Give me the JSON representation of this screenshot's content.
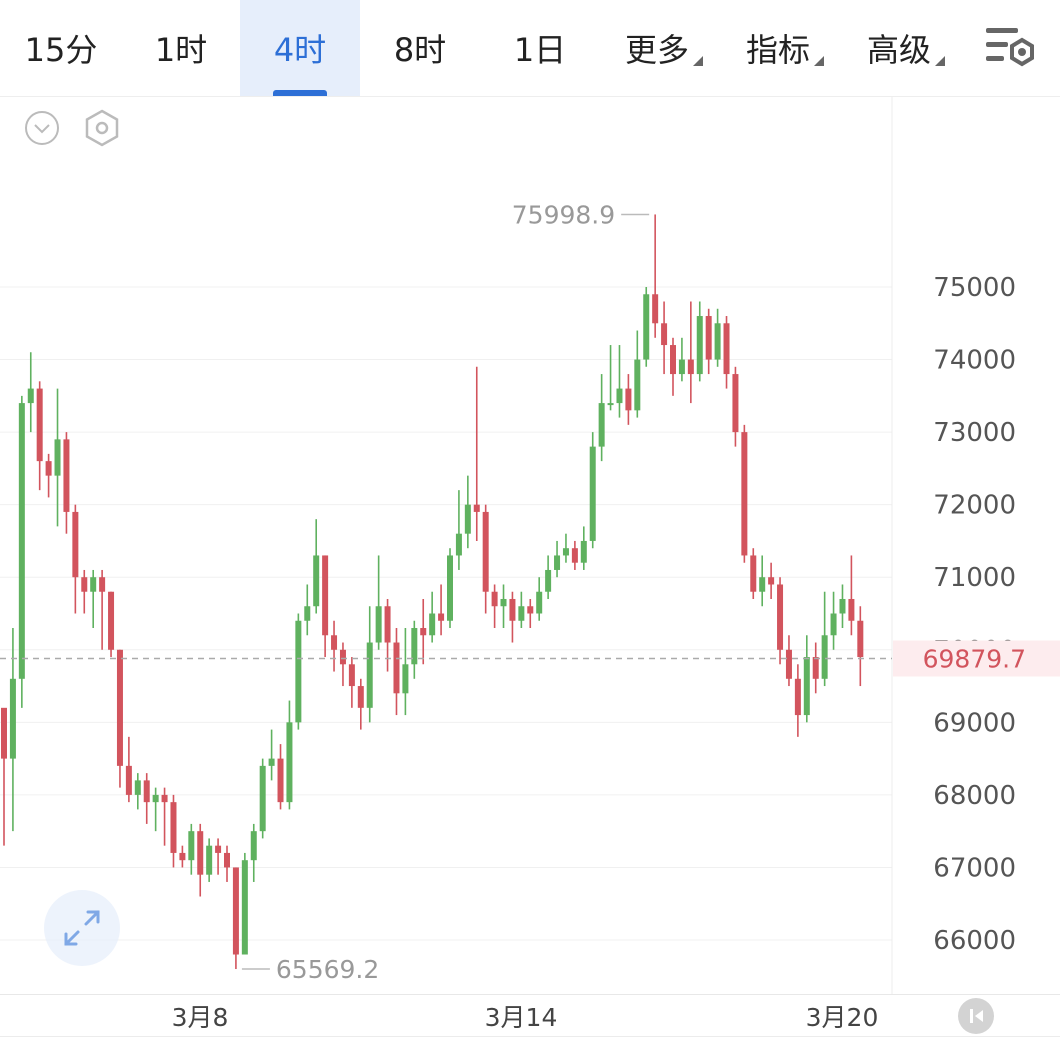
{
  "tabs": [
    {
      "label": "15分",
      "active": false
    },
    {
      "label": "1时",
      "active": false
    },
    {
      "label": "4时",
      "active": true
    },
    {
      "label": "8时",
      "active": false
    },
    {
      "label": "1日",
      "active": false
    }
  ],
  "dropdowns": [
    {
      "label": "更多"
    },
    {
      "label": "指标"
    },
    {
      "label": "高级"
    }
  ],
  "icons": {
    "settings": "chart-settings-icon",
    "collapse": "chevron-down-circle-icon",
    "indicator": "hexagon-settings-icon",
    "expand": "expand-arrows-icon",
    "scroll_end": "scroll-to-latest-icon"
  },
  "colors": {
    "up": "#5fb15f",
    "down": "#d2545d",
    "accent": "#2d6fd6",
    "price_line": "#aaaaaa",
    "price_badge_bg": "#fdecee",
    "price_badge_text": "#d2545d"
  },
  "chart_data": {
    "type": "candlestick",
    "y_ticks": [
      66000,
      67000,
      68000,
      69000,
      70000,
      71000,
      72000,
      73000,
      74000,
      75000
    ],
    "x_labels": [
      "3月8",
      "3月14",
      "3月20"
    ],
    "current_price": "69879.7",
    "high_label": "75998.9",
    "low_label": "65569.2",
    "candles": [
      [
        69200,
        68500,
        69100,
        67300
      ],
      [
        68500,
        69600,
        70300,
        67500
      ],
      [
        69600,
        73400,
        73500,
        69200
      ],
      [
        73400,
        73600,
        74100,
        73000
      ],
      [
        73600,
        72600,
        73700,
        72200
      ],
      [
        72600,
        72400,
        72700,
        72100
      ],
      [
        72400,
        72900,
        73600,
        71700
      ],
      [
        72900,
        71900,
        73000,
        71600
      ],
      [
        71900,
        71000,
        72000,
        70500
      ],
      [
        71000,
        70800,
        71100,
        70500
      ],
      [
        70800,
        71000,
        71100,
        70300
      ],
      [
        71000,
        70800,
        71100,
        70000
      ],
      [
        70800,
        70000,
        70800,
        69900
      ],
      [
        70000,
        68400,
        70000,
        68100
      ],
      [
        68400,
        68000,
        68800,
        67900
      ],
      [
        68000,
        68200,
        68300,
        67800
      ],
      [
        68200,
        67900,
        68300,
        67600
      ],
      [
        67900,
        68000,
        68100,
        67500
      ],
      [
        68000,
        67900,
        68100,
        67300
      ],
      [
        67900,
        67200,
        68000,
        67000
      ],
      [
        67200,
        67100,
        67300,
        67000
      ],
      [
        67100,
        67500,
        67600,
        66900
      ],
      [
        67500,
        66900,
        67600,
        66600
      ],
      [
        66900,
        67300,
        67400,
        66800
      ],
      [
        67300,
        67200,
        67400,
        66900
      ],
      [
        67200,
        67000,
        67300,
        66800
      ],
      [
        67000,
        65800,
        67000,
        65600
      ],
      [
        65800,
        67100,
        67200,
        65800
      ],
      [
        67100,
        67500,
        67600,
        66800
      ],
      [
        67500,
        68400,
        68500,
        67400
      ],
      [
        68400,
        68500,
        68900,
        68200
      ],
      [
        68500,
        67900,
        68700,
        67800
      ],
      [
        67900,
        69000,
        69300,
        67800
      ],
      [
        69000,
        70400,
        70500,
        68900
      ],
      [
        70400,
        70600,
        70900,
        70200
      ],
      [
        70600,
        71300,
        71800,
        70500
      ],
      [
        71300,
        70200,
        71300,
        69900
      ],
      [
        70200,
        70000,
        70400,
        69700
      ],
      [
        70000,
        69800,
        70100,
        69500
      ],
      [
        69800,
        69500,
        69900,
        69200
      ],
      [
        69500,
        69200,
        69600,
        68900
      ],
      [
        69200,
        70100,
        70600,
        69000
      ],
      [
        70100,
        70600,
        71300,
        70000
      ],
      [
        70600,
        70100,
        70700,
        69700
      ],
      [
        70100,
        69400,
        70300,
        69100
      ],
      [
        69400,
        69800,
        70300,
        69100
      ],
      [
        69800,
        70300,
        70400,
        69600
      ],
      [
        70300,
        70200,
        70700,
        69800
      ],
      [
        70200,
        70500,
        70800,
        70100
      ],
      [
        70500,
        70400,
        70900,
        70200
      ],
      [
        70400,
        71300,
        71400,
        70300
      ],
      [
        71300,
        71600,
        72200,
        71100
      ],
      [
        71600,
        72000,
        72400,
        71400
      ],
      [
        72000,
        71900,
        73900,
        71500
      ],
      [
        71900,
        70800,
        72000,
        70500
      ],
      [
        70800,
        70600,
        70900,
        70300
      ],
      [
        70600,
        70700,
        70900,
        70300
      ],
      [
        70700,
        70400,
        70800,
        70100
      ],
      [
        70400,
        70600,
        70800,
        70300
      ],
      [
        70600,
        70500,
        70700,
        70300
      ],
      [
        70500,
        70800,
        71000,
        70400
      ],
      [
        70800,
        71100,
        71300,
        70700
      ],
      [
        71100,
        71300,
        71500,
        71000
      ],
      [
        71300,
        71400,
        71600,
        71200
      ],
      [
        71400,
        71200,
        71500,
        71100
      ],
      [
        71200,
        71500,
        71700,
        71100
      ],
      [
        71500,
        72800,
        73000,
        71400
      ],
      [
        72800,
        73400,
        73800,
        72600
      ],
      [
        73400,
        73400,
        74200,
        73300
      ],
      [
        73400,
        73600,
        74200,
        73200
      ],
      [
        73600,
        73300,
        73800,
        73100
      ],
      [
        73300,
        74000,
        74400,
        73200
      ],
      [
        74000,
        74900,
        75000,
        73900
      ],
      [
        74900,
        74500,
        76000,
        74300
      ],
      [
        74500,
        74200,
        74800,
        73800
      ],
      [
        74200,
        73800,
        74300,
        73500
      ],
      [
        73800,
        74000,
        74300,
        73700
      ],
      [
        74000,
        73800,
        74800,
        73400
      ],
      [
        73800,
        74600,
        74800,
        73700
      ],
      [
        74600,
        74000,
        74700,
        73800
      ],
      [
        74000,
        74500,
        74700,
        73900
      ],
      [
        74500,
        73800,
        74600,
        73600
      ],
      [
        73800,
        73000,
        73900,
        72800
      ],
      [
        73000,
        71300,
        73100,
        71200
      ],
      [
        71300,
        70800,
        71400,
        70700
      ],
      [
        70800,
        71000,
        71300,
        70600
      ],
      [
        71000,
        70900,
        71200,
        70700
      ],
      [
        70900,
        70000,
        71000,
        69800
      ],
      [
        70000,
        69600,
        70200,
        69500
      ],
      [
        69600,
        69100,
        69800,
        68800
      ],
      [
        69100,
        69900,
        70200,
        69000
      ],
      [
        69900,
        69600,
        70100,
        69400
      ],
      [
        69600,
        70200,
        70800,
        69500
      ],
      [
        70200,
        70500,
        70800,
        70000
      ],
      [
        70500,
        70700,
        70900,
        70300
      ],
      [
        70700,
        70400,
        71300,
        70200
      ],
      [
        70400,
        69900,
        70600,
        69500
      ]
    ]
  }
}
